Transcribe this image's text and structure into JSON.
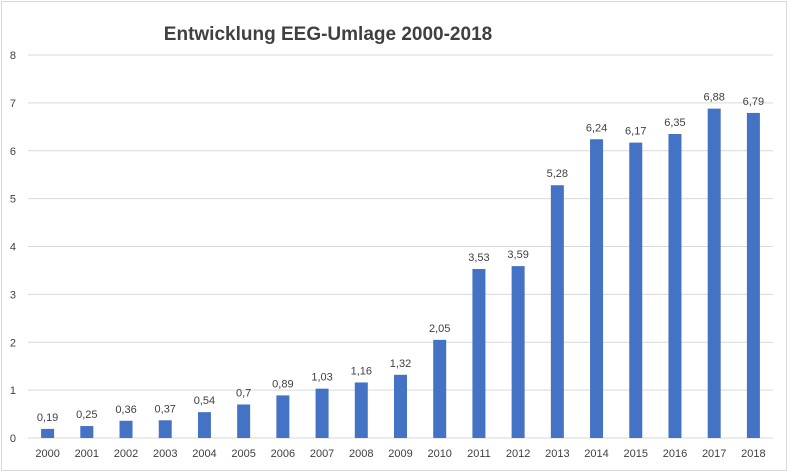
{
  "chart_data": {
    "type": "bar",
    "title": "Entwicklung EEG-Umlage 2000-2018",
    "xlabel": "",
    "ylabel": "",
    "categories": [
      "2000",
      "2001",
      "2002",
      "2003",
      "2004",
      "2005",
      "2006",
      "2007",
      "2008",
      "2009",
      "2010",
      "2011",
      "2012",
      "2013",
      "2014",
      "2015",
      "2016",
      "2017",
      "2018"
    ],
    "values": [
      0.19,
      0.25,
      0.36,
      0.37,
      0.54,
      0.7,
      0.89,
      1.03,
      1.16,
      1.32,
      2.05,
      3.53,
      3.59,
      5.28,
      6.24,
      6.17,
      6.35,
      6.88,
      6.79
    ],
    "data_labels": [
      "0,19",
      "0,25",
      "0,36",
      "0,37",
      "0,54",
      "0,7",
      "0,89",
      "1,03",
      "1,16",
      "1,32",
      "2,05",
      "3,53",
      "3,59",
      "5,28",
      "6,24",
      "6,17",
      "6,35",
      "6,88",
      "6,79"
    ],
    "ylim": [
      0,
      8
    ],
    "yticks": [
      "0",
      "1",
      "2",
      "3",
      "4",
      "5",
      "6",
      "7",
      "8"
    ],
    "grid": true,
    "legend": "none",
    "bar_color": "#4472c4",
    "grid_color": "#d9d9d9"
  }
}
